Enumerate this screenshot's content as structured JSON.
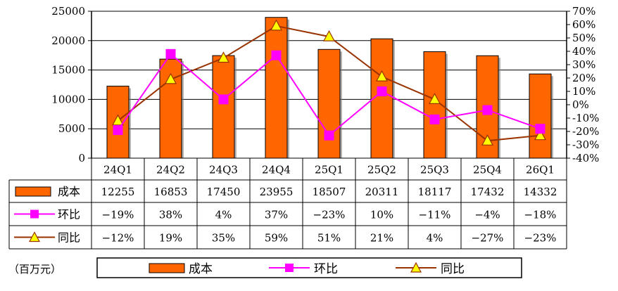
{
  "chart_data": {
    "type": "bar",
    "categories": [
      "24Q1",
      "24Q2",
      "24Q3",
      "24Q4",
      "25Q1",
      "25Q2",
      "25Q3",
      "25Q4",
      "26Q1"
    ],
    "series": [
      {
        "name": "成本",
        "type": "bar",
        "axis": "left",
        "values": [
          12255,
          16853,
          17450,
          23955,
          18507,
          20311,
          18117,
          17432,
          14332
        ],
        "display": [
          "12255",
          "16853",
          "17450",
          "23955",
          "18507",
          "20311",
          "18117",
          "17432",
          "14332"
        ],
        "color": "#FF6600"
      },
      {
        "name": "环比",
        "type": "line",
        "axis": "right",
        "values": [
          -19,
          38,
          4,
          37,
          -23,
          10,
          -11,
          -4,
          -18
        ],
        "display": [
          "−19%",
          "38%",
          "4%",
          "37%",
          "−23%",
          "10%",
          "−11%",
          "−4%",
          "−18%"
        ],
        "color": "#FF00FF",
        "marker": "square"
      },
      {
        "name": "同比",
        "type": "line",
        "axis": "right",
        "values": [
          -12,
          19,
          35,
          59,
          51,
          21,
          4,
          -27,
          -23
        ],
        "display": [
          "−12%",
          "19%",
          "35%",
          "59%",
          "51%",
          "21%",
          "4%",
          "−27%",
          "−23%"
        ],
        "color": "#993300",
        "marker": "triangle",
        "marker_color": "#FFFF00"
      }
    ],
    "y_left": {
      "min": 0,
      "max": 25000,
      "ticks": [
        "0",
        "5000",
        "10000",
        "15000",
        "20000",
        "25000"
      ]
    },
    "y_right": {
      "min": -40,
      "max": 70,
      "ticks": [
        "-40%",
        "-30%",
        "-20%",
        "-10%",
        "0%",
        "10%",
        "20%",
        "30%",
        "40%",
        "50%",
        "60%",
        "70%"
      ]
    },
    "grid": true,
    "data_table": true,
    "legend": "bottom",
    "unit_label": "（百万元）"
  }
}
